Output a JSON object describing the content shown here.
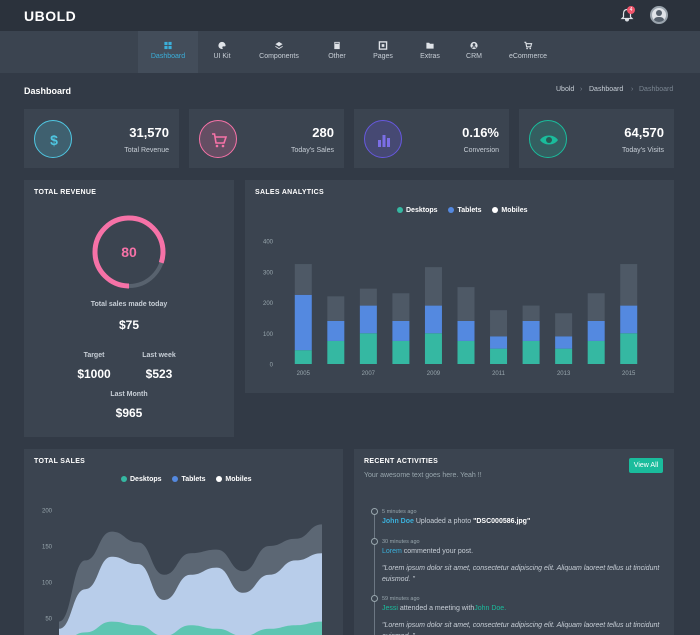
{
  "topbar": {
    "logo": "UBOLD",
    "notification_count": "4"
  },
  "nav": [
    {
      "label": "Dashboard",
      "icon": "dashboard-icon",
      "active": true
    },
    {
      "label": "UI Kit",
      "icon": "palette-icon"
    },
    {
      "label": "Components",
      "icon": "layers-icon"
    },
    {
      "label": "Other",
      "icon": "book-icon"
    },
    {
      "label": "Pages",
      "icon": "pages-icon"
    },
    {
      "label": "Extras",
      "icon": "folder-icon"
    },
    {
      "label": "CRM",
      "icon": "user-icon"
    },
    {
      "label": "eCommerce",
      "icon": "cart-icon"
    }
  ],
  "page": {
    "title": "Dashboard",
    "breadcrumb": [
      "Ubold",
      "Dashboard",
      "Dashboard"
    ]
  },
  "stats": [
    {
      "value": "31,570",
      "label": "Total Revenue",
      "icon": "dollar-icon",
      "color": "#4fc6e1"
    },
    {
      "value": "280",
      "label": "Today's Sales",
      "icon": "cart-icon",
      "color": "#f672a7"
    },
    {
      "value": "0.16%",
      "label": "Conversion",
      "icon": "bar-chart-icon",
      "color": "#6658dd"
    },
    {
      "value": "64,570",
      "label": "Today's Visits",
      "icon": "eye-icon",
      "color": "#1abc9c"
    }
  ],
  "total_revenue": {
    "title": "Total Revenue",
    "gauge_value": "80",
    "gauge_percent": 80,
    "sales_today_label": "Total sales made today",
    "sales_today_value": "$75",
    "target_label": "Target",
    "target_value": "$1000",
    "last_week_label": "Last week",
    "last_week_value": "$523",
    "last_month_label": "Last Month",
    "last_month_value": "$965"
  },
  "sales_analytics": {
    "title": "Sales Analytics",
    "legend": [
      "Desktops",
      "Tablets",
      "Mobiles"
    ]
  },
  "total_sales": {
    "title": "Total Sales",
    "legend": [
      "Desktops",
      "Tablets",
      "Mobiles"
    ]
  },
  "recent_activities": {
    "title": "Recent Activities",
    "subtitle": "Your awesome text goes here. Yeah !!",
    "view_all": "View All",
    "items": [
      {
        "time": "5 minutes ago",
        "name": "John Doe",
        "text": " Uploaded a photo ",
        "file": "\"DSC000586.jpg\""
      },
      {
        "time": "30 minutes ago",
        "name": "Lorem",
        "text": " commented your post.",
        "quote": "\"Lorem ipsum dolor sit amet, consectetur adipiscing elit. Aliquam laoreet tellus ut tincidunt euismod. \""
      },
      {
        "time": "59 minutes ago",
        "name": "Jessi",
        "text": " attended a meeting with",
        "with": "John Doe.",
        "quote": "\"Lorem ipsum dolor sit amet, consectetur adipiscing elit. Aliquam laoreet tellus ut tincidunt euismod. \""
      }
    ]
  },
  "chart_data": [
    {
      "type": "bar",
      "title": "Sales Analytics",
      "stacked": true,
      "categories": [
        "2005",
        "2006",
        "2007",
        "2008",
        "2009",
        "2010",
        "2011",
        "2012",
        "2013",
        "2014",
        "2015"
      ],
      "x_tick_labels": [
        "2005",
        "2007",
        "2009",
        "2011",
        "2013",
        "2015"
      ],
      "ylim": [
        0,
        400
      ],
      "yticks": [
        0,
        100,
        200,
        300,
        400
      ],
      "legend_position": "top-center",
      "series": [
        {
          "name": "Desktops",
          "color": "#35b8a2",
          "values": [
            45,
            75,
            100,
            75,
            100,
            75,
            50,
            75,
            50,
            75,
            100
          ]
        },
        {
          "name": "Tablets",
          "color": "#5489e0",
          "values": [
            180,
            65,
            90,
            65,
            90,
            65,
            40,
            65,
            40,
            65,
            90
          ]
        },
        {
          "name": "Mobiles",
          "color": "#4e5966",
          "values": [
            100,
            80,
            55,
            90,
            125,
            110,
            85,
            50,
            75,
            90,
            135
          ]
        }
      ]
    },
    {
      "type": "area",
      "title": "Total Sales",
      "stacked": true,
      "x": [
        0,
        1,
        2,
        3,
        4,
        5,
        6,
        7,
        8,
        9,
        10
      ],
      "ylim": [
        0,
        200
      ],
      "yticks": [
        50,
        100,
        150,
        200
      ],
      "legend_position": "top-center",
      "series": [
        {
          "name": "Desktops",
          "color": "#5ec5b2",
          "values": [
            15,
            30,
            45,
            40,
            25,
            40,
            35,
            25,
            35,
            40,
            45
          ]
        },
        {
          "name": "Tablets",
          "color": "#b8cdea",
          "values": [
            20,
            60,
            90,
            85,
            50,
            70,
            85,
            60,
            75,
            90,
            95
          ]
        },
        {
          "name": "Mobiles",
          "color": "#5c6774",
          "values": [
            10,
            40,
            35,
            30,
            35,
            30,
            25,
            30,
            40,
            30,
            40
          ]
        }
      ]
    }
  ]
}
